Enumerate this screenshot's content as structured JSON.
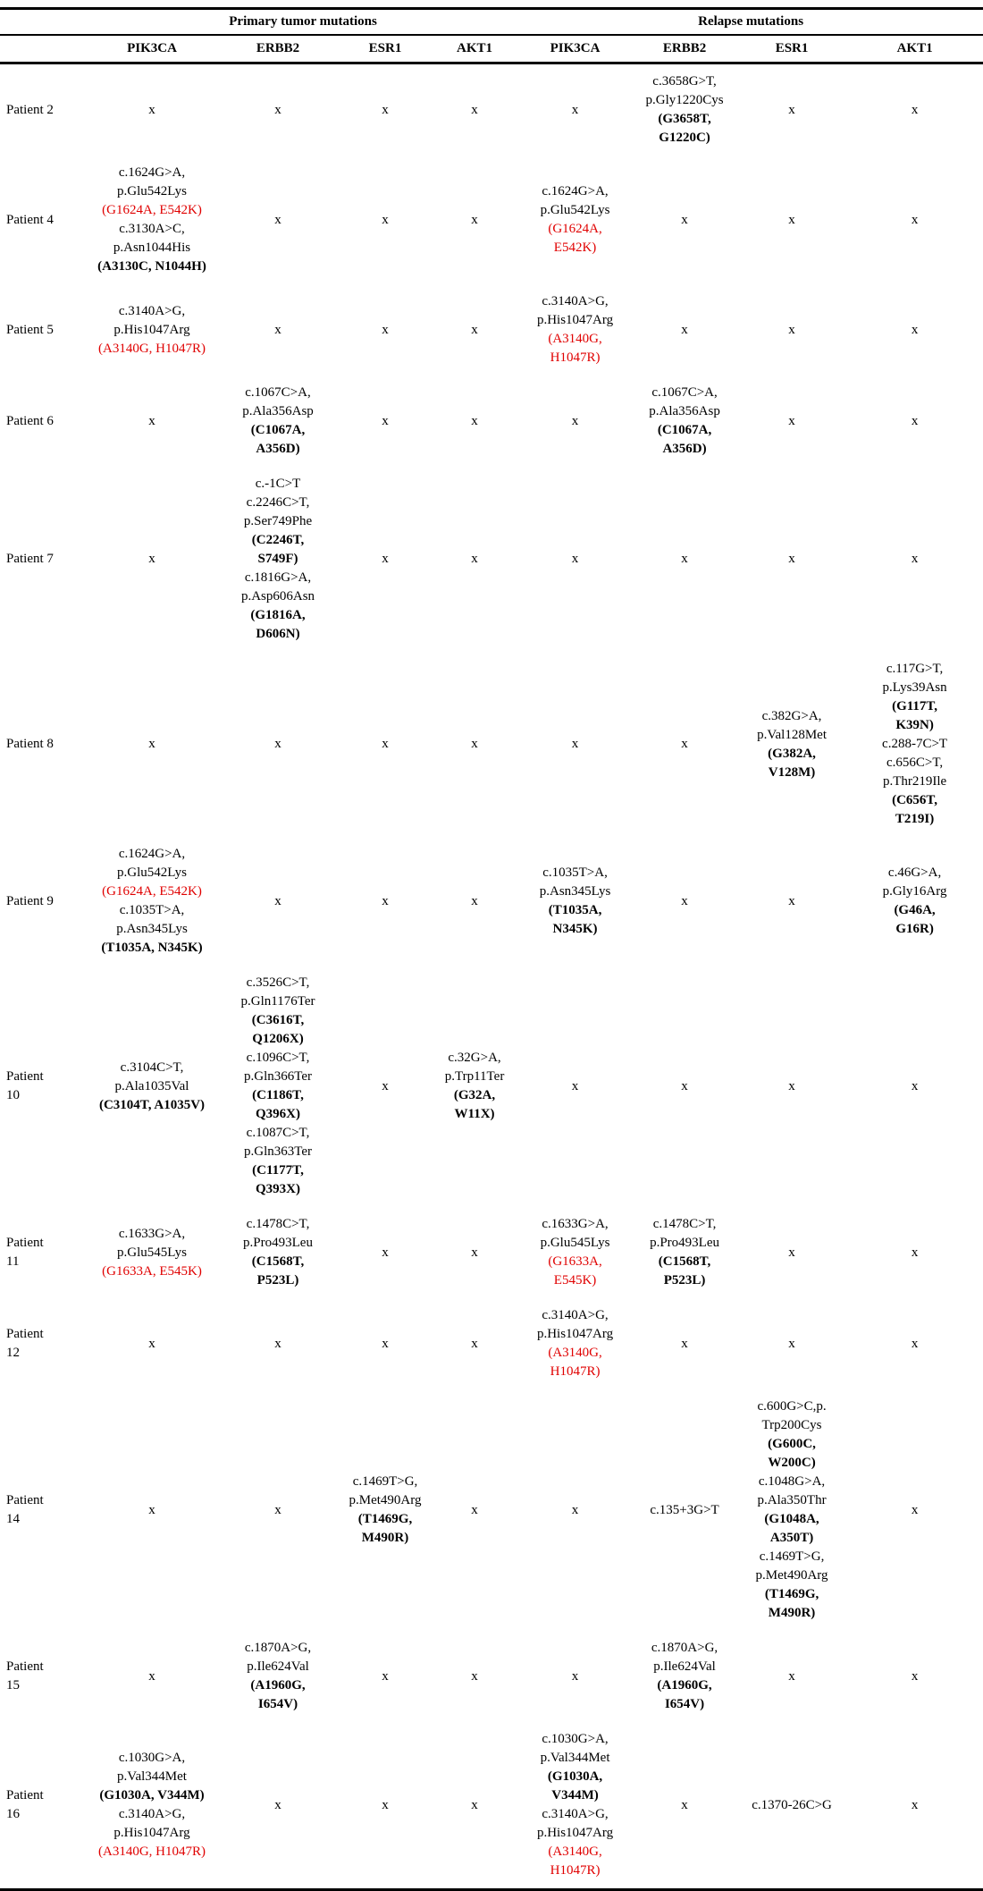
{
  "colors": {
    "hotspot_red": "#e00000",
    "text": "#000000",
    "rule": "#000000"
  },
  "header": {
    "corner": "",
    "groups": [
      {
        "label": "Primary tumor mutations",
        "span": 4
      },
      {
        "label": "Relapse mutations",
        "span": 4
      }
    ],
    "genes": [
      "PIK3CA",
      "ERBB2",
      "ESR1",
      "AKT1",
      "PIK3CA",
      "ERBB2",
      "ESR1",
      "AKT1"
    ]
  },
  "rows": [
    {
      "patient": "Patient 2",
      "cells": [
        [
          {
            "t": "x",
            "s": "n"
          }
        ],
        [
          {
            "t": "x",
            "s": "n"
          }
        ],
        [
          {
            "t": "x",
            "s": "n"
          }
        ],
        [
          {
            "t": "x",
            "s": "n"
          }
        ],
        [
          {
            "t": "x",
            "s": "n"
          }
        ],
        [
          {
            "t": "c.3658G>T,",
            "s": "n"
          },
          {
            "t": "p.Gly1220Cys",
            "s": "n"
          },
          {
            "t": "(G3658T,",
            "s": "b"
          },
          {
            "t": "G1220C)",
            "s": "b"
          }
        ],
        [
          {
            "t": "x",
            "s": "n"
          }
        ],
        [
          {
            "t": "x",
            "s": "n"
          }
        ]
      ]
    },
    {
      "patient": "Patient 4",
      "cells": [
        [
          {
            "t": "c.1624G>A,",
            "s": "n"
          },
          {
            "t": "p.Glu542Lys",
            "s": "n"
          },
          {
            "t": "(G1624A, E542K)",
            "s": "r"
          },
          {
            "t": "c.3130A>C,",
            "s": "n"
          },
          {
            "t": "p.Asn1044His",
            "s": "n"
          },
          {
            "t": "(A3130C, N1044H)",
            "s": "b"
          }
        ],
        [
          {
            "t": "x",
            "s": "n"
          }
        ],
        [
          {
            "t": "x",
            "s": "n"
          }
        ],
        [
          {
            "t": "x",
            "s": "n"
          }
        ],
        [
          {
            "t": "c.1624G>A,",
            "s": "n"
          },
          {
            "t": "p.Glu542Lys",
            "s": "n"
          },
          {
            "t": "(G1624A,",
            "s": "r"
          },
          {
            "t": "E542K)",
            "s": "r"
          }
        ],
        [
          {
            "t": "x",
            "s": "n"
          }
        ],
        [
          {
            "t": "x",
            "s": "n"
          }
        ],
        [
          {
            "t": "x",
            "s": "n"
          }
        ]
      ]
    },
    {
      "patient": "Patient 5",
      "cells": [
        [
          {
            "t": "c.3140A>G,",
            "s": "n"
          },
          {
            "t": "p.His1047Arg",
            "s": "n"
          },
          {
            "t": "(A3140G, H1047R)",
            "s": "r"
          }
        ],
        [
          {
            "t": "x",
            "s": "n"
          }
        ],
        [
          {
            "t": "x",
            "s": "n"
          }
        ],
        [
          {
            "t": "x",
            "s": "n"
          }
        ],
        [
          {
            "t": "c.3140A>G,",
            "s": "n"
          },
          {
            "t": "p.His1047Arg",
            "s": "n"
          },
          {
            "t": "(A3140G,",
            "s": "r"
          },
          {
            "t": "H1047R)",
            "s": "r"
          }
        ],
        [
          {
            "t": "x",
            "s": "n"
          }
        ],
        [
          {
            "t": "x",
            "s": "n"
          }
        ],
        [
          {
            "t": "x",
            "s": "n"
          }
        ]
      ]
    },
    {
      "patient": "Patient 6",
      "cells": [
        [
          {
            "t": "x",
            "s": "n"
          }
        ],
        [
          {
            "t": "c.1067C>A,",
            "s": "n"
          },
          {
            "t": "p.Ala356Asp",
            "s": "n"
          },
          {
            "t": "(C1067A,",
            "s": "b"
          },
          {
            "t": "A356D)",
            "s": "b"
          }
        ],
        [
          {
            "t": "x",
            "s": "n"
          }
        ],
        [
          {
            "t": "x",
            "s": "n"
          }
        ],
        [
          {
            "t": "x",
            "s": "n"
          }
        ],
        [
          {
            "t": "c.1067C>A,",
            "s": "n"
          },
          {
            "t": "p.Ala356Asp",
            "s": "n"
          },
          {
            "t": "(C1067A,",
            "s": "b"
          },
          {
            "t": "A356D)",
            "s": "b"
          }
        ],
        [
          {
            "t": "x",
            "s": "n"
          }
        ],
        [
          {
            "t": "x",
            "s": "n"
          }
        ]
      ]
    },
    {
      "patient": "Patient 7",
      "cells": [
        [
          {
            "t": "x",
            "s": "n"
          }
        ],
        [
          {
            "t": "c.-1C>T",
            "s": "n"
          },
          {
            "t": "c.2246C>T,",
            "s": "n"
          },
          {
            "t": "p.Ser749Phe",
            "s": "n"
          },
          {
            "t": "(C2246T,",
            "s": "b"
          },
          {
            "t": "S749F)",
            "s": "b"
          },
          {
            "t": "c.1816G>A,",
            "s": "n"
          },
          {
            "t": "p.Asp606Asn",
            "s": "n"
          },
          {
            "t": "(G1816A,",
            "s": "b"
          },
          {
            "t": "D606N)",
            "s": "b"
          }
        ],
        [
          {
            "t": "x",
            "s": "n"
          }
        ],
        [
          {
            "t": "x",
            "s": "n"
          }
        ],
        [
          {
            "t": "x",
            "s": "n"
          }
        ],
        [
          {
            "t": "x",
            "s": "n"
          }
        ],
        [
          {
            "t": "x",
            "s": "n"
          }
        ],
        [
          {
            "t": "x",
            "s": "n"
          }
        ]
      ]
    },
    {
      "patient": "Patient 8",
      "cells": [
        [
          {
            "t": "x",
            "s": "n"
          }
        ],
        [
          {
            "t": "x",
            "s": "n"
          }
        ],
        [
          {
            "t": "x",
            "s": "n"
          }
        ],
        [
          {
            "t": "x",
            "s": "n"
          }
        ],
        [
          {
            "t": "x",
            "s": "n"
          }
        ],
        [
          {
            "t": "x",
            "s": "n"
          }
        ],
        [
          {
            "t": "c.382G>A,",
            "s": "n"
          },
          {
            "t": "p.Val128Met",
            "s": "n"
          },
          {
            "t": "(G382A,",
            "s": "b"
          },
          {
            "t": "V128M)",
            "s": "b"
          }
        ],
        [
          {
            "t": "c.117G>T,",
            "s": "n"
          },
          {
            "t": "p.Lys39Asn",
            "s": "n"
          },
          {
            "t": "(G117T,",
            "s": "b"
          },
          {
            "t": "K39N)",
            "s": "b"
          },
          {
            "t": "c.288-7C>T",
            "s": "n"
          },
          {
            "t": "c.656C>T,",
            "s": "n"
          },
          {
            "t": "p.Thr219Ile",
            "s": "n"
          },
          {
            "t": "(C656T,",
            "s": "b"
          },
          {
            "t": "T219I)",
            "s": "b"
          }
        ]
      ]
    },
    {
      "patient": "Patient 9",
      "cells": [
        [
          {
            "t": "c.1624G>A,",
            "s": "n"
          },
          {
            "t": "p.Glu542Lys",
            "s": "n"
          },
          {
            "t": "(G1624A, E542K)",
            "s": "r"
          },
          {
            "t": "c.1035T>A,",
            "s": "n"
          },
          {
            "t": "p.Asn345Lys",
            "s": "n"
          },
          {
            "t": "(T1035A, N345K)",
            "s": "b"
          }
        ],
        [
          {
            "t": "x",
            "s": "n"
          }
        ],
        [
          {
            "t": "x",
            "s": "n"
          }
        ],
        [
          {
            "t": "x",
            "s": "n"
          }
        ],
        [
          {
            "t": "c.1035T>A,",
            "s": "n"
          },
          {
            "t": "p.Asn345Lys",
            "s": "n"
          },
          {
            "t": "(T1035A,",
            "s": "b"
          },
          {
            "t": "N345K)",
            "s": "b"
          }
        ],
        [
          {
            "t": "x",
            "s": "n"
          }
        ],
        [
          {
            "t": "x",
            "s": "n"
          }
        ],
        [
          {
            "t": "c.46G>A,",
            "s": "n"
          },
          {
            "t": "p.Gly16Arg",
            "s": "n"
          },
          {
            "t": "(G46A,",
            "s": "b"
          },
          {
            "t": "G16R)",
            "s": "b"
          }
        ]
      ]
    },
    {
      "patient": "Patient 10",
      "cells": [
        [
          {
            "t": "c.3104C>T,",
            "s": "n"
          },
          {
            "t": "p.Ala1035Val",
            "s": "n"
          },
          {
            "t": "(C3104T, A1035V)",
            "s": "b"
          }
        ],
        [
          {
            "t": "c.3526C>T,",
            "s": "n"
          },
          {
            "t": "p.Gln1176Ter",
            "s": "n"
          },
          {
            "t": "(C3616T,",
            "s": "b"
          },
          {
            "t": "Q1206X)",
            "s": "b"
          },
          {
            "t": "c.1096C>T,",
            "s": "n"
          },
          {
            "t": "p.Gln366Ter",
            "s": "n"
          },
          {
            "t": "(C1186T,",
            "s": "b"
          },
          {
            "t": "Q396X)",
            "s": "b"
          },
          {
            "t": "c.1087C>T,",
            "s": "n"
          },
          {
            "t": "p.Gln363Ter",
            "s": "n"
          },
          {
            "t": "(C1177T,",
            "s": "b"
          },
          {
            "t": "Q393X)",
            "s": "b"
          }
        ],
        [
          {
            "t": "x",
            "s": "n"
          }
        ],
        [
          {
            "t": "c.32G>A,",
            "s": "n"
          },
          {
            "t": "p.Trp11Ter",
            "s": "n"
          },
          {
            "t": "(G32A,",
            "s": "b"
          },
          {
            "t": "W11X)",
            "s": "b"
          }
        ],
        [
          {
            "t": "x",
            "s": "n"
          }
        ],
        [
          {
            "t": "x",
            "s": "n"
          }
        ],
        [
          {
            "t": "x",
            "s": "n"
          }
        ],
        [
          {
            "t": "x",
            "s": "n"
          }
        ]
      ]
    },
    {
      "patient": "Patient 11",
      "cells": [
        [
          {
            "t": "c.1633G>A,",
            "s": "n"
          },
          {
            "t": "p.Glu545Lys",
            "s": "n"
          },
          {
            "t": "(G1633A, E545K)",
            "s": "r"
          }
        ],
        [
          {
            "t": "c.1478C>T,",
            "s": "n"
          },
          {
            "t": "p.Pro493Leu",
            "s": "n"
          },
          {
            "t": "(C1568T,",
            "s": "b"
          },
          {
            "t": "P523L)",
            "s": "b"
          }
        ],
        [
          {
            "t": "x",
            "s": "n"
          }
        ],
        [
          {
            "t": "x",
            "s": "n"
          }
        ],
        [
          {
            "t": "c.1633G>A,",
            "s": "n"
          },
          {
            "t": "p.Glu545Lys",
            "s": "n"
          },
          {
            "t": "(G1633A,",
            "s": "r"
          },
          {
            "t": "E545K)",
            "s": "r"
          }
        ],
        [
          {
            "t": "c.1478C>T,",
            "s": "n"
          },
          {
            "t": "p.Pro493Leu",
            "s": "n"
          },
          {
            "t": "(C1568T,",
            "s": "b"
          },
          {
            "t": "P523L)",
            "s": "b"
          }
        ],
        [
          {
            "t": "x",
            "s": "n"
          }
        ],
        [
          {
            "t": "x",
            "s": "n"
          }
        ]
      ]
    },
    {
      "patient": "Patient 12",
      "cells": [
        [
          {
            "t": "x",
            "s": "n"
          }
        ],
        [
          {
            "t": "x",
            "s": "n"
          }
        ],
        [
          {
            "t": "x",
            "s": "n"
          }
        ],
        [
          {
            "t": "x",
            "s": "n"
          }
        ],
        [
          {
            "t": "c.3140A>G,",
            "s": "n"
          },
          {
            "t": "p.His1047Arg",
            "s": "n"
          },
          {
            "t": "(A3140G,",
            "s": "r"
          },
          {
            "t": "H1047R)",
            "s": "r"
          }
        ],
        [
          {
            "t": "x",
            "s": "n"
          }
        ],
        [
          {
            "t": "x",
            "s": "n"
          }
        ],
        [
          {
            "t": "x",
            "s": "n"
          }
        ]
      ]
    },
    {
      "patient": "Patient 14",
      "cells": [
        [
          {
            "t": "x",
            "s": "n"
          }
        ],
        [
          {
            "t": "x",
            "s": "n"
          }
        ],
        [
          {
            "t": "c.1469T>G,",
            "s": "n"
          },
          {
            "t": "p.Met490Arg",
            "s": "n"
          },
          {
            "t": "(T1469G,",
            "s": "b"
          },
          {
            "t": "M490R)",
            "s": "b"
          }
        ],
        [
          {
            "t": "x",
            "s": "n"
          }
        ],
        [
          {
            "t": "x",
            "s": "n"
          }
        ],
        [
          {
            "t": "c.135+3G>T",
            "s": "n"
          }
        ],
        [
          {
            "t": "c.600G>C,p.",
            "s": "n"
          },
          {
            "t": "Trp200Cys",
            "s": "n"
          },
          {
            "t": "(G600C,",
            "s": "b"
          },
          {
            "t": "W200C)",
            "s": "b"
          },
          {
            "t": "c.1048G>A,",
            "s": "n"
          },
          {
            "t": "p.Ala350Thr",
            "s": "n"
          },
          {
            "t": "(G1048A,",
            "s": "b"
          },
          {
            "t": "A350T)",
            "s": "b"
          },
          {
            "t": "c.1469T>G,",
            "s": "n"
          },
          {
            "t": "p.Met490Arg",
            "s": "n"
          },
          {
            "t": "(T1469G,",
            "s": "b"
          },
          {
            "t": "M490R)",
            "s": "b"
          }
        ],
        [
          {
            "t": "x",
            "s": "n"
          }
        ]
      ]
    },
    {
      "patient": "Patient 15",
      "cells": [
        [
          {
            "t": "x",
            "s": "n"
          }
        ],
        [
          {
            "t": "c.1870A>G,",
            "s": "n"
          },
          {
            "t": "p.Ile624Val",
            "s": "n"
          },
          {
            "t": "(A1960G,",
            "s": "b"
          },
          {
            "t": "I654V)",
            "s": "b"
          }
        ],
        [
          {
            "t": "x",
            "s": "n"
          }
        ],
        [
          {
            "t": "x",
            "s": "n"
          }
        ],
        [
          {
            "t": "x",
            "s": "n"
          }
        ],
        [
          {
            "t": "c.1870A>G,",
            "s": "n"
          },
          {
            "t": "p.Ile624Val",
            "s": "n"
          },
          {
            "t": "(A1960G,",
            "s": "b"
          },
          {
            "t": "I654V)",
            "s": "b"
          }
        ],
        [
          {
            "t": "x",
            "s": "n"
          }
        ],
        [
          {
            "t": "x",
            "s": "n"
          }
        ]
      ]
    },
    {
      "patient": "Patient 16",
      "cells": [
        [
          {
            "t": "c.1030G>A,",
            "s": "n"
          },
          {
            "t": "p.Val344Met",
            "s": "n"
          },
          {
            "t": "(G1030A, V344M)",
            "s": "b"
          },
          {
            "t": "c.3140A>G,",
            "s": "n"
          },
          {
            "t": "p.His1047Arg",
            "s": "n"
          },
          {
            "t": "(A3140G, H1047R)",
            "s": "r"
          }
        ],
        [
          {
            "t": "x",
            "s": "n"
          }
        ],
        [
          {
            "t": "x",
            "s": "n"
          }
        ],
        [
          {
            "t": "x",
            "s": "n"
          }
        ],
        [
          {
            "t": "c.1030G>A,",
            "s": "n"
          },
          {
            "t": "p.Val344Met",
            "s": "n"
          },
          {
            "t": "(G1030A,",
            "s": "b"
          },
          {
            "t": "V344M)",
            "s": "b"
          },
          {
            "t": "c.3140A>G,",
            "s": "n"
          },
          {
            "t": "p.His1047Arg",
            "s": "n"
          },
          {
            "t": "(A3140G,",
            "s": "r"
          },
          {
            "t": "H1047R)",
            "s": "r"
          }
        ],
        [
          {
            "t": "x",
            "s": "n"
          }
        ],
        [
          {
            "t": "c.1370-26C>G",
            "s": "n"
          }
        ],
        [
          {
            "t": "x",
            "s": "n"
          }
        ]
      ]
    }
  ]
}
